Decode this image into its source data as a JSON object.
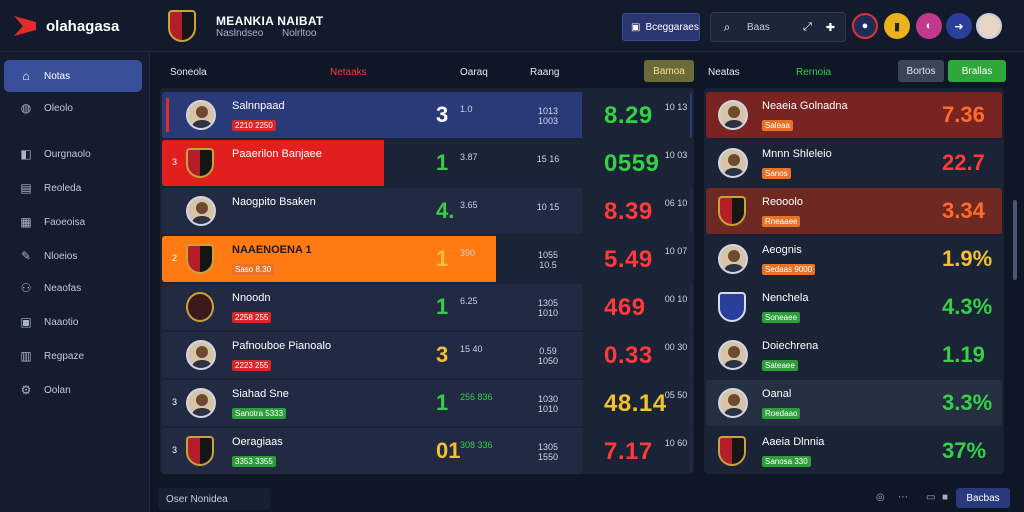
{
  "brand": {
    "name": "olahagasa",
    "logo_icon": "brand-logo-icon"
  },
  "header": {
    "title": "MEANKIA NAIBAT",
    "subtitle_a": "Naslndseo",
    "subtitle_b": "Nolrltoo",
    "primary_button": "Bceggaraes",
    "search_value": "Baas",
    "icons": [
      "flag-red-icon",
      "badge-yellow-icon",
      "badge-pink-icon",
      "badge-blue-icon",
      "profile-icon"
    ]
  },
  "sidebar": {
    "items": [
      {
        "label": "Notas",
        "icon": "home-icon",
        "active": true
      },
      {
        "label": "Oleolo",
        "icon": "globe-icon",
        "active": false
      },
      {
        "label": "Ourgnaolo",
        "icon": "gamepad-icon",
        "active": false
      },
      {
        "label": "Reoleda",
        "icon": "list-icon",
        "active": false
      },
      {
        "label": "Faoeoisa",
        "icon": "chart-icon",
        "active": false
      },
      {
        "label": "Nloeios",
        "icon": "pin-icon",
        "active": false
      },
      {
        "label": "Neaofas",
        "icon": "users-icon",
        "active": false
      },
      {
        "label": "Naaotio",
        "icon": "image-icon",
        "active": false
      },
      {
        "label": "Regpaze",
        "icon": "file-icon",
        "active": false
      },
      {
        "label": "Oolan",
        "icon": "settings-icon",
        "active": false
      }
    ]
  },
  "section": {
    "label_left": "Soneola",
    "label_accent": "Netaaks",
    "col_a": "Oaraq",
    "col_b": "Raang",
    "chip_left": "Bamoa",
    "label_right": "Neatas",
    "label_right_accent": "Rernoia",
    "chip_right_a": "Bortos",
    "chip_right_b": "Brallas"
  },
  "left_rows": [
    {
      "name": "Salnnpaad",
      "rank": "",
      "tag": "2210 2250",
      "big": "3",
      "small": "1.0",
      "mid": "1013 1003",
      "score": "8.29",
      "side": "10 13"
    },
    {
      "name": "Paaerilon Banjaee",
      "rank": "3",
      "tag": "",
      "big": "1",
      "small": "3.87",
      "mid": "15 16",
      "score": "0559",
      "side": "10 03"
    },
    {
      "name": "Naogpito Bsaken",
      "rank": "",
      "tag": "",
      "big": "4.",
      "small": "3.65",
      "mid": "10 15",
      "score": "8.39",
      "side": "06 10"
    },
    {
      "name": "NAAENOENA 1",
      "rank": "2",
      "tag": "Saso 8.30",
      "big": "1",
      "small": "390",
      "mid": "1055 10.5",
      "score": "5.49",
      "side": "10 07"
    },
    {
      "name": "Nnoodn",
      "rank": "",
      "tag": "2258 255",
      "big": "1",
      "small": "6.25",
      "mid": "1305 1010",
      "score": "469",
      "side": "00 10"
    },
    {
      "name": "Pafnouboe Pianoalo",
      "rank": "",
      "tag": "2223 255",
      "big": "3",
      "small": "15 40",
      "mid": "0.59 1050",
      "score": "0.33",
      "side": "00 30"
    },
    {
      "name": "Siahad Sne",
      "rank": "3",
      "tag": "Sanotra 5333",
      "big": "1",
      "small": "256 836",
      "mid": "1030 1010",
      "score": "48.14",
      "side": "05 50"
    },
    {
      "name": "Oeragiaas",
      "rank": "3",
      "tag": "3353 3355",
      "big": "01",
      "small": "308 336",
      "mid": "1305 1550",
      "score": "7.17",
      "side": "10 60"
    }
  ],
  "right_rows": [
    {
      "name": "Neaeia Golnadna",
      "tag": "Saleaa",
      "value": "7.36"
    },
    {
      "name": "Mnnn Shleleio",
      "tag": "Sanos",
      "value": "22.7"
    },
    {
      "name": "Reooolo",
      "tag": "Rneaaee",
      "value": "3.34"
    },
    {
      "name": "Aeognis",
      "tag": "Sedaas 9000",
      "value": "1.9%"
    },
    {
      "name": "Nenchela",
      "tag": "Soneaee",
      "value": "4.3%"
    },
    {
      "name": "Doiechrena",
      "tag": "Sateaee",
      "value": "1.19"
    },
    {
      "name": "Oanal",
      "tag": "Roedaao",
      "value": "3.3%"
    },
    {
      "name": "Aaeia Dlnnia",
      "tag": "Sanosa 330",
      "value": "37%"
    }
  ],
  "footer": {
    "label": "Oser Nonidea",
    "button": "Bacbas"
  },
  "colors": {
    "accent": "#3a4f9a",
    "red": "#e52a2a",
    "orange": "#ff7a1a",
    "green": "#35d046",
    "yellow": "#f2c12e"
  }
}
